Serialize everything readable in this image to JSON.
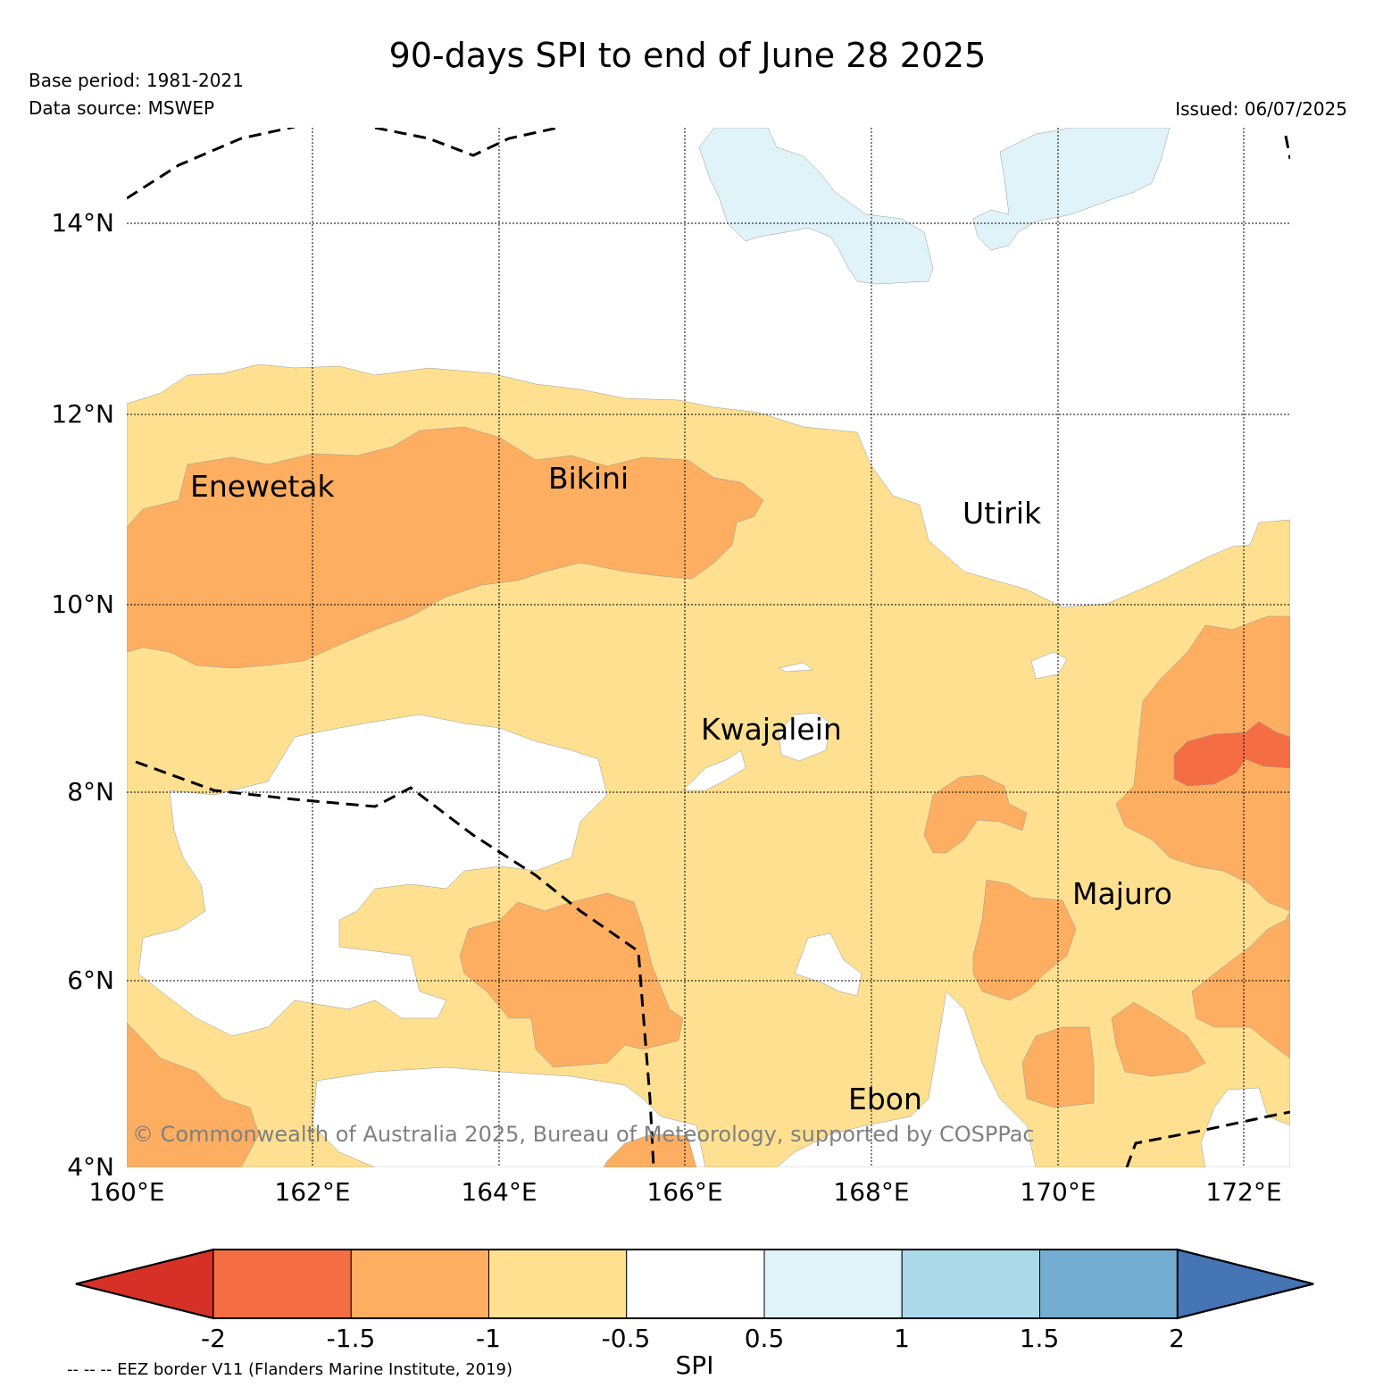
{
  "header": {
    "title": "90-days SPI to end of June 28 2025",
    "base_period": "Base period: 1981-2021",
    "data_source": "Data source: MSWEP",
    "issued": "Issued: 06/07/2025"
  },
  "map": {
    "lat_labels": [
      "14°N",
      "12°N",
      "10°N",
      "8°N",
      "6°N",
      "4°N"
    ],
    "lon_labels": [
      "160°E",
      "162°E",
      "164°E",
      "166°E",
      "168°E",
      "170°E",
      "172°E"
    ],
    "places": [
      "Enewetak",
      "Bikini",
      "Utirik",
      "Kwajalein",
      "Majuro",
      "Ebon"
    ],
    "copyright": "© Commonwealth of Australia 2025, Bureau of Meteorology, supported by COSPPac",
    "extent": {
      "lon_min": 160,
      "lon_max": 172.5,
      "lat_min": 4,
      "lat_max": 15
    }
  },
  "colorbar": {
    "title": "SPI",
    "ticks": [
      "-2",
      "-1.5",
      "-1",
      "-0.5",
      "0.5",
      "1",
      "1.5",
      "2"
    ],
    "colors": [
      "#d73027",
      "#f46d43",
      "#fdae61",
      "#fee090",
      "#ffffff",
      "#e0f3f8",
      "#abd9e9",
      "#74add1",
      "#4575b4"
    ]
  },
  "footer": {
    "eez_note": "-- -- -- EEZ border V11 (Flanders Marine Institute, 2019)"
  }
}
